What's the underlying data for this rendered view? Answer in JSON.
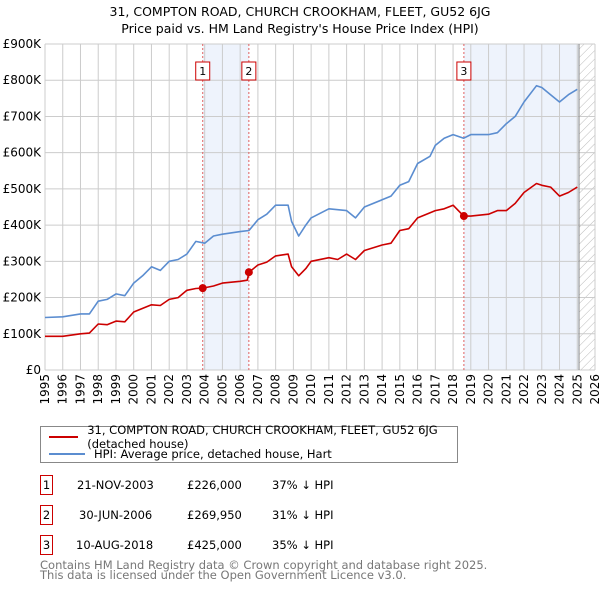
{
  "title_line1": "31, COMPTON ROAD, CHURCH CROOKHAM, FLEET, GU52 6JG",
  "title_line2": "Price paid vs. HM Land Registry's House Price Index (HPI)",
  "colors": {
    "property": "#cc0000",
    "hpi": "#5b8dd0",
    "shade": "#eef3fc",
    "grid": "#cccccc"
  },
  "chart_data": {
    "type": "line",
    "title": "31, COMPTON ROAD, CHURCH CROOKHAM, FLEET, GU52 6JG — Price paid vs. HM Land Registry's House Price Index (HPI)",
    "xlim": [
      1995,
      2026
    ],
    "ylim": [
      0,
      900000
    ],
    "yticks": [
      0,
      100000,
      200000,
      300000,
      400000,
      500000,
      600000,
      700000,
      800000,
      900000
    ],
    "ytick_labels": [
      "£0",
      "£100K",
      "£200K",
      "£300K",
      "£400K",
      "£500K",
      "£600K",
      "£700K",
      "£800K",
      "£900K"
    ],
    "xticks": [
      "1995",
      "1996",
      "1997",
      "1998",
      "1999",
      "2000",
      "2001",
      "2002",
      "2003",
      "2004",
      "2005",
      "2006",
      "2007",
      "2008",
      "2009",
      "2010",
      "2011",
      "2012",
      "2013",
      "2014",
      "2015",
      "2016",
      "2017",
      "2018",
      "2019",
      "2020",
      "2021",
      "2022",
      "2023",
      "2024",
      "2025",
      "2026"
    ],
    "grid": true,
    "series": [
      {
        "name": "31, COMPTON ROAD, CHURCH CROOKHAM, FLEET, GU52 6JG (detached house)",
        "x": [
          1995,
          1996,
          1997,
          1997.5,
          1998,
          1998.5,
          1999,
          1999.5,
          2000,
          2000.5,
          2001,
          2001.5,
          2002,
          2002.5,
          2003,
          2003.5,
          2003.9,
          2004.5,
          2005,
          2006,
          2006.4,
          2006.5,
          2007,
          2007.5,
          2008,
          2008.7,
          2008.9,
          2009.3,
          2009.7,
          2010,
          2011,
          2011.5,
          2012,
          2012.5,
          2013,
          2014,
          2014.5,
          2015,
          2015.5,
          2016,
          2016.5,
          2017,
          2017.5,
          2018,
          2018.6,
          2019,
          2020,
          2020.5,
          2021,
          2021.5,
          2022,
          2022.7,
          2023,
          2023.5,
          2024,
          2024.5,
          2025
        ],
        "values": [
          93000,
          93000,
          100000,
          102000,
          127000,
          125000,
          135000,
          133000,
          160000,
          170000,
          180000,
          178000,
          195000,
          200000,
          220000,
          225000,
          226000,
          232000,
          240000,
          245000,
          248000,
          269950,
          290000,
          298000,
          315000,
          320000,
          285000,
          260000,
          280000,
          300000,
          310000,
          305000,
          320000,
          305000,
          330000,
          345000,
          350000,
          385000,
          390000,
          420000,
          430000,
          440000,
          445000,
          455000,
          425000,
          425000,
          430000,
          440000,
          440000,
          460000,
          490000,
          515000,
          510000,
          505000,
          480000,
          490000,
          505000
        ]
      },
      {
        "name": "HPI: Average price, detached house, Hart",
        "x": [
          1995,
          1996,
          1997,
          1997.5,
          1998,
          1998.5,
          1999,
          1999.5,
          2000,
          2000.5,
          2001,
          2001.5,
          2002,
          2002.5,
          2003,
          2003.5,
          2004,
          2004.5,
          2005,
          2006,
          2006.5,
          2007,
          2007.5,
          2008,
          2008.7,
          2008.9,
          2009.3,
          2009.7,
          2010,
          2011,
          2012,
          2012.5,
          2013,
          2014,
          2014.5,
          2015,
          2015.5,
          2016,
          2016.7,
          2017,
          2017.5,
          2018,
          2018.6,
          2019,
          2020,
          2020.5,
          2021,
          2021.5,
          2022,
          2022.7,
          2023,
          2023.5,
          2024,
          2024.5,
          2025
        ],
        "values": [
          145000,
          147000,
          155000,
          155000,
          190000,
          195000,
          210000,
          205000,
          240000,
          260000,
          285000,
          275000,
          300000,
          305000,
          320000,
          355000,
          350000,
          370000,
          375000,
          382000,
          385000,
          415000,
          430000,
          455000,
          455000,
          410000,
          370000,
          400000,
          420000,
          445000,
          440000,
          420000,
          450000,
          470000,
          480000,
          510000,
          520000,
          570000,
          590000,
          620000,
          640000,
          650000,
          640000,
          650000,
          650000,
          655000,
          680000,
          700000,
          740000,
          785000,
          780000,
          760000,
          740000,
          760000,
          775000
        ]
      }
    ],
    "annotations": [
      {
        "label": "1",
        "x": 2003.89,
        "value": 226000
      },
      {
        "label": "2",
        "x": 2006.49,
        "value": 269950
      },
      {
        "label": "3",
        "x": 2018.61,
        "value": 425000
      }
    ],
    "forecast_hatch_from": 2025.1,
    "legend": "bottom"
  },
  "legend": {
    "property": "31, COMPTON ROAD, CHURCH CROOKHAM, FLEET, GU52 6JG (detached house)",
    "hpi": "HPI: Average price, detached house, Hart"
  },
  "sales": [
    {
      "num": "1",
      "date": "21-NOV-2003",
      "price": "£226,000",
      "diff": "37% ↓ HPI"
    },
    {
      "num": "2",
      "date": "30-JUN-2006",
      "price": "£269,950",
      "diff": "31% ↓ HPI"
    },
    {
      "num": "3",
      "date": "10-AUG-2018",
      "price": "£425,000",
      "diff": "35% ↓ HPI"
    }
  ],
  "footer": {
    "line1": "Contains HM Land Registry data © Crown copyright and database right 2025.",
    "line2": "This data is licensed under the Open Government Licence v3.0."
  }
}
